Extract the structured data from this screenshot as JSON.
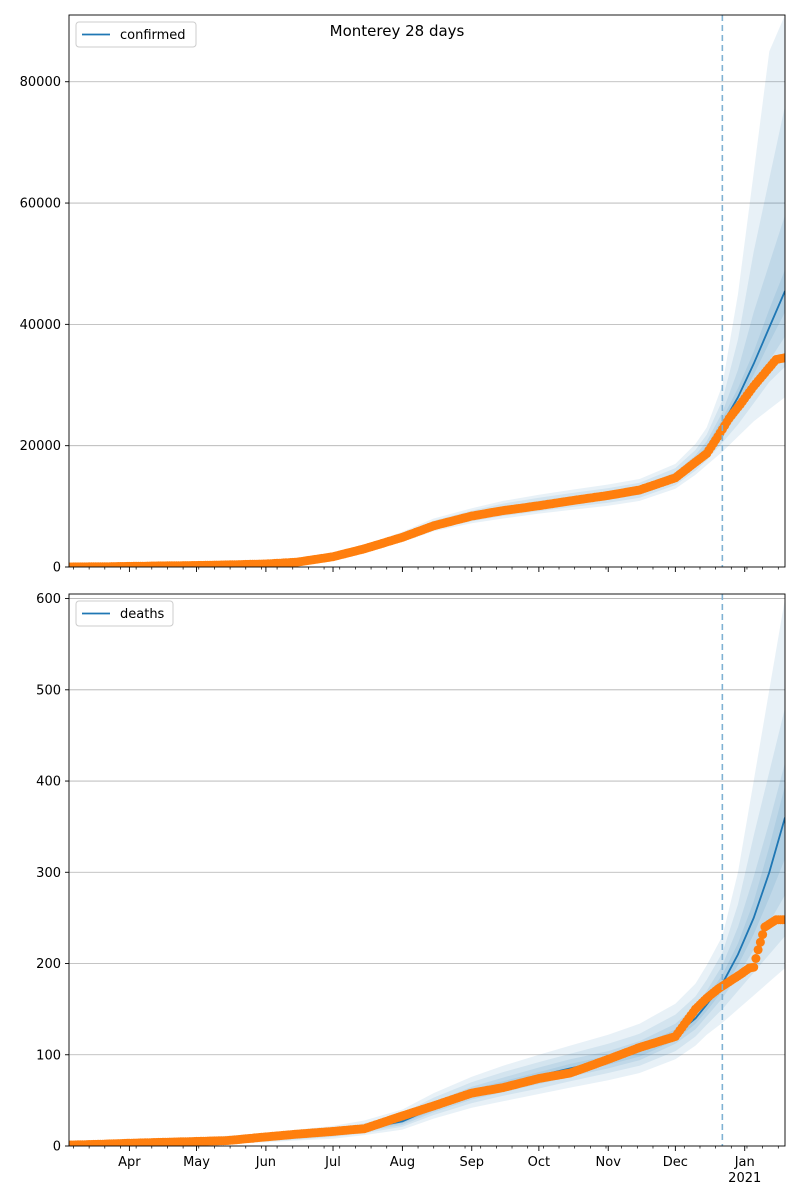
{
  "title": "Monterey 28 days",
  "colors": {
    "model": "#1f77b4",
    "observed": "#ff7f0e",
    "forecast_line": "#7fb1d3",
    "band": "#1f77b4",
    "grid": "#b0b0b0"
  },
  "x_ticks": [
    {
      "label": "Apr",
      "date": "2020-04-01"
    },
    {
      "label": "May",
      "date": "2020-05-01"
    },
    {
      "label": "Jun",
      "date": "2020-06-01"
    },
    {
      "label": "Jul",
      "date": "2020-07-01"
    },
    {
      "label": "Aug",
      "date": "2020-08-01"
    },
    {
      "label": "Sep",
      "date": "2020-09-01"
    },
    {
      "label": "Oct",
      "date": "2020-10-01"
    },
    {
      "label": "Nov",
      "date": "2020-11-01"
    },
    {
      "label": "Dec",
      "date": "2020-12-01"
    },
    {
      "label": "Jan",
      "date": "2021-01-01"
    }
  ],
  "year_label": "2021",
  "chart_data": [
    {
      "type": "line",
      "legend": "confirmed",
      "legend_position": "top-left",
      "grid": "horizontal",
      "xlim": [
        "2020-03-05",
        "2021-01-19"
      ],
      "ylim": [
        0,
        91000
      ],
      "yticks": [
        0,
        20000,
        40000,
        60000,
        80000
      ],
      "forecast_start": "2020-12-22",
      "model": {
        "x": [
          "2020-03-05",
          "2020-04-01",
          "2020-05-01",
          "2020-06-01",
          "2020-06-15",
          "2020-07-01",
          "2020-07-15",
          "2020-08-01",
          "2020-08-15",
          "2020-09-01",
          "2020-09-15",
          "2020-10-01",
          "2020-10-15",
          "2020-11-01",
          "2020-11-15",
          "2020-12-01",
          "2020-12-10",
          "2020-12-15",
          "2020-12-22",
          "2020-12-29",
          "2021-01-05",
          "2021-01-12",
          "2021-01-19"
        ],
        "y": [
          100,
          150,
          300,
          500,
          900,
          1700,
          3000,
          4900,
          6900,
          8400,
          9400,
          10300,
          11000,
          11800,
          12600,
          14800,
          17500,
          19500,
          23500,
          28000,
          33500,
          39500,
          45500
        ]
      },
      "bands": [
        {
          "low": [
            80,
            120,
            250,
            400,
            750,
            1400,
            2500,
            4100,
            5900,
            7200,
            8000,
            8800,
            9400,
            10100,
            10900,
            12900,
            15200,
            16800,
            19000,
            21500,
            24000,
            26000,
            28000
          ],
          "high": [
            130,
            190,
            360,
            600,
            1100,
            2000,
            3500,
            5800,
            8000,
            9700,
            10900,
            11900,
            12700,
            13600,
            14500,
            17000,
            20300,
            23000,
            30000,
            45000,
            65000,
            85000,
            91000
          ]
        },
        {
          "low": [
            85,
            130,
            260,
            430,
            800,
            1500,
            2650,
            4350,
            6200,
            7550,
            8400,
            9200,
            9850,
            10600,
            11400,
            13500,
            15900,
            17600,
            20500,
            23500,
            27000,
            30500,
            33000
          ],
          "high": [
            120,
            175,
            340,
            570,
            1020,
            1900,
            3350,
            5500,
            7650,
            9300,
            10450,
            11400,
            12150,
            13000,
            13900,
            16300,
            19300,
            21800,
            27500,
            37500,
            52000,
            64000,
            76000
          ]
        },
        {
          "low": [
            90,
            140,
            275,
            460,
            840,
            1580,
            2800,
            4570,
            6480,
            7900,
            8800,
            9650,
            10300,
            11100,
            11900,
            14000,
            16600,
            18400,
            21600,
            25200,
            29500,
            34000,
            38000
          ],
          "high": [
            112,
            162,
            325,
            540,
            970,
            1820,
            3200,
            5230,
            7330,
            8900,
            9950,
            10900,
            11600,
            12450,
            13300,
            15600,
            18450,
            20700,
            25500,
            32500,
            42000,
            50000,
            58000
          ]
        },
        {
          "low": [
            95,
            145,
            288,
            480,
            870,
            1640,
            2900,
            4740,
            6690,
            8150,
            9100,
            9980,
            10650,
            11450,
            12250,
            14400,
            17050,
            19000,
            22500,
            26800,
            31700,
            37000,
            42000
          ],
          "high": [
            106,
            156,
            313,
            522,
            934,
            1762,
            3105,
            5070,
            7120,
            8650,
            9700,
            10620,
            11350,
            12150,
            12950,
            15200,
            17950,
            20000,
            24500,
            29500,
            35500,
            42500,
            49000
          ]
        }
      ],
      "observed": {
        "x": [
          "2020-03-05",
          "2020-03-20",
          "2020-04-01",
          "2020-04-15",
          "2020-05-01",
          "2020-05-15",
          "2020-06-01",
          "2020-06-15",
          "2020-07-01",
          "2020-07-15",
          "2020-08-01",
          "2020-08-15",
          "2020-09-01",
          "2020-09-15",
          "2020-10-01",
          "2020-10-15",
          "2020-11-01",
          "2020-11-15",
          "2020-12-01",
          "2020-12-10",
          "2020-12-15",
          "2020-12-20",
          "2020-12-25",
          "2020-12-30",
          "2021-01-05",
          "2021-01-10",
          "2021-01-15",
          "2021-01-19"
        ],
        "y": [
          5,
          40,
          100,
          180,
          250,
          350,
          500,
          800,
          1700,
          3000,
          4900,
          6800,
          8400,
          9300,
          10100,
          10900,
          11800,
          12700,
          14700,
          17300,
          18700,
          21500,
          24500,
          26800,
          29800,
          32000,
          34200,
          34500
        ]
      }
    },
    {
      "type": "line",
      "legend": "deaths",
      "legend_position": "top-left",
      "grid": "horizontal",
      "xlim": [
        "2020-03-05",
        "2021-01-19"
      ],
      "ylim": [
        0,
        605
      ],
      "yticks": [
        0,
        100,
        200,
        300,
        400,
        500,
        600
      ],
      "forecast_start": "2020-12-22",
      "model": {
        "x": [
          "2020-03-05",
          "2020-04-01",
          "2020-05-01",
          "2020-06-01",
          "2020-06-15",
          "2020-07-01",
          "2020-07-15",
          "2020-08-01",
          "2020-08-15",
          "2020-09-01",
          "2020-09-15",
          "2020-10-01",
          "2020-10-15",
          "2020-11-01",
          "2020-11-15",
          "2020-12-01",
          "2020-12-10",
          "2020-12-15",
          "2020-12-22",
          "2020-12-29",
          "2021-01-05",
          "2021-01-12",
          "2021-01-19"
        ],
        "y": [
          1,
          2,
          5,
          8,
          11,
          14,
          19,
          27,
          42,
          58,
          67,
          77,
          85,
          94,
          104,
          122,
          140,
          155,
          178,
          210,
          250,
          300,
          360
        ]
      },
      "bands": [
        {
          "low": [
            0,
            0,
            2,
            4,
            6,
            8,
            12,
            18,
            30,
            42,
            49,
            57,
            64,
            72,
            80,
            95,
            110,
            122,
            135,
            150,
            165,
            180,
            195
          ],
          "high": [
            3,
            5,
            9,
            14,
            18,
            22,
            28,
            40,
            58,
            76,
            88,
            100,
            110,
            122,
            134,
            156,
            178,
            198,
            230,
            300,
            400,
            500,
            600
          ]
        },
        {
          "low": [
            0,
            1,
            3,
            5,
            7,
            10,
            14,
            21,
            34,
            47,
            55,
            63,
            71,
            80,
            88,
            104,
            120,
            133,
            150,
            170,
            190,
            210,
            230
          ],
          "high": [
            2,
            4,
            8,
            12,
            16,
            19,
            25,
            36,
            53,
            70,
            81,
            92,
            101,
            112,
            123,
            144,
            164,
            182,
            212,
            265,
            340,
            410,
            480
          ]
        },
        {
          "low": [
            0,
            1,
            4,
            6,
            8,
            11,
            16,
            23,
            37,
            51,
            59,
            68,
            76,
            85,
            94,
            112,
            128,
            142,
            162,
            187,
            215,
            245,
            275
          ],
          "high": [
            2,
            3,
            7,
            10,
            14,
            17,
            23,
            32,
            48,
            65,
            75,
            86,
            95,
            104,
            115,
            134,
            153,
            170,
            198,
            240,
            295,
            355,
            420
          ]
        },
        {
          "low": [
            1,
            1,
            4,
            7,
            9,
            12,
            17,
            25,
            39,
            54,
            63,
            72,
            80,
            89,
            98,
            116,
            134,
            148,
            170,
            198,
            232,
            272,
            315
          ],
          "high": [
            2,
            3,
            6,
            9,
            13,
            16,
            21,
            29,
            45,
            62,
            71,
            81,
            90,
            99,
            109,
            128,
            147,
            162,
            188,
            222,
            268,
            328,
            395
          ]
        }
      ],
      "observed": {
        "x": [
          "2020-03-05",
          "2020-03-20",
          "2020-04-01",
          "2020-04-15",
          "2020-05-01",
          "2020-05-15",
          "2020-06-01",
          "2020-06-15",
          "2020-07-01",
          "2020-07-15",
          "2020-08-01",
          "2020-08-15",
          "2020-09-01",
          "2020-09-15",
          "2020-10-01",
          "2020-10-15",
          "2020-11-01",
          "2020-11-15",
          "2020-12-01",
          "2020-12-10",
          "2020-12-15",
          "2020-12-20",
          "2020-12-25",
          "2020-12-30",
          "2021-01-03",
          "2021-01-05",
          "2021-01-07",
          "2021-01-10",
          "2021-01-15",
          "2021-01-19"
        ],
        "y": [
          1,
          2,
          3,
          4,
          5,
          6,
          10,
          13,
          16,
          19,
          33,
          44,
          58,
          64,
          74,
          80,
          95,
          108,
          120,
          150,
          162,
          172,
          180,
          188,
          195,
          196,
          215,
          240,
          248,
          248
        ]
      }
    }
  ]
}
